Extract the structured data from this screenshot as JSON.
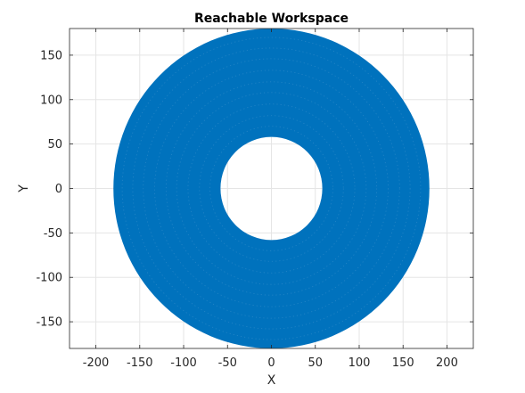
{
  "chart_data": {
    "type": "scatter",
    "title": "Reachable Workspace",
    "xlabel": "X",
    "ylabel": "Y",
    "xlim": [
      -230,
      230
    ],
    "ylim": [
      -180,
      180
    ],
    "xticks": [
      -200,
      -150,
      -100,
      -50,
      0,
      50,
      100,
      150,
      200
    ],
    "yticks": [
      -150,
      -100,
      -50,
      0,
      50,
      100,
      150
    ],
    "grid": true,
    "series": [
      {
        "shape": "annulus",
        "center": [
          0,
          0
        ],
        "inner_radius": 58,
        "outer_radius": 180,
        "color": "#0072BD"
      }
    ]
  },
  "colors": {
    "series": "#0072BD",
    "background": "#ffffff",
    "grid": "#e5e5e5",
    "axis": "#262626"
  }
}
